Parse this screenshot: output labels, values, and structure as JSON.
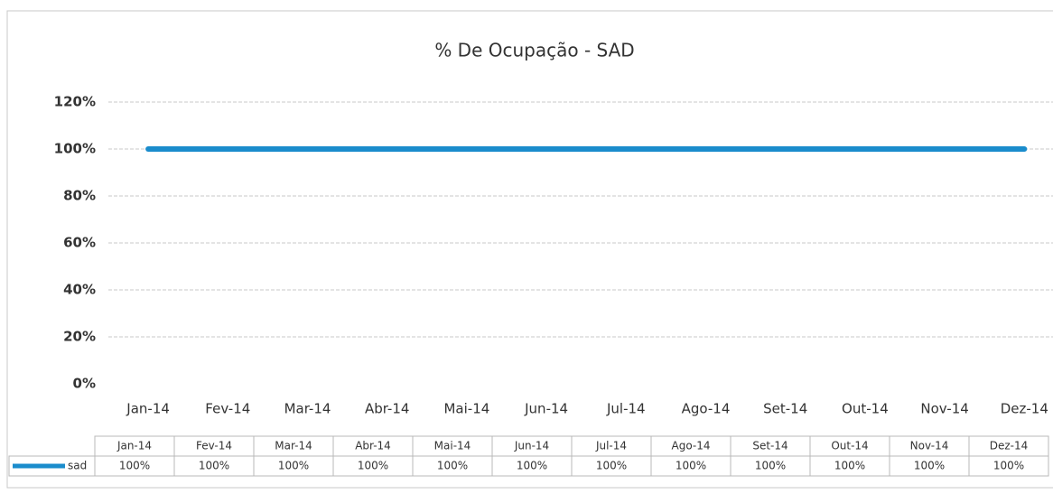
{
  "chart_data": {
    "type": "line",
    "title": "% De Ocupação - SAD",
    "categories": [
      "Jan-14",
      "Fev-14",
      "Mar-14",
      "Abr-14",
      "Mai-14",
      "Jun-14",
      "Jul-14",
      "Ago-14",
      "Set-14",
      "Out-14",
      "Nov-14",
      "Dez-14"
    ],
    "series": [
      {
        "name": "sad",
        "color": "#1a8ccc",
        "values": [
          100,
          100,
          100,
          100,
          100,
          100,
          100,
          100,
          100,
          100,
          100,
          100
        ],
        "value_labels": [
          "100%",
          "100%",
          "100%",
          "100%",
          "100%",
          "100%",
          "100%",
          "100%",
          "100%",
          "100%",
          "100%",
          "100%"
        ]
      }
    ],
    "ylim": [
      0,
      120
    ],
    "yticks": [
      {
        "value": 0,
        "label": "0%"
      },
      {
        "value": 20,
        "label": "20%"
      },
      {
        "value": 40,
        "label": "40%"
      },
      {
        "value": 60,
        "label": "60%"
      },
      {
        "value": 80,
        "label": "80%"
      },
      {
        "value": 100,
        "label": "100%"
      },
      {
        "value": 120,
        "label": "120%"
      }
    ],
    "grid": true
  }
}
